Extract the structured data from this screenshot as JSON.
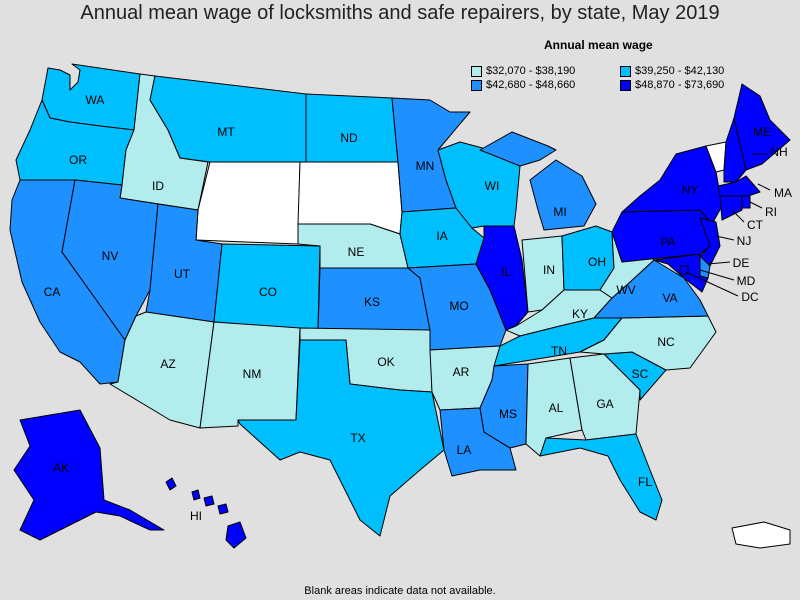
{
  "title": "Annual mean wage of locksmiths and safe repairers, by state, May 2019",
  "legend": {
    "title": "Annual mean wage",
    "items": [
      {
        "label": "$32,070 - $38,190",
        "color": "#b3ecec"
      },
      {
        "label": "$39,250 - $42,130",
        "color": "#00bfff"
      },
      {
        "label": "$42,680 - $48,660",
        "color": "#1e90ff"
      },
      {
        "label": "$48,870 - $73,690",
        "color": "#0000ff"
      }
    ]
  },
  "footnote": "Blank areas indicate data not available.",
  "colors": {
    "tier1": "#b3ecec",
    "tier2": "#00bfff",
    "tier3": "#1e90ff",
    "tier4": "#0000ff",
    "blank": "#ffffff"
  },
  "states": {
    "WA": {
      "label": "WA",
      "tier": 2
    },
    "OR": {
      "label": "OR",
      "tier": 2
    },
    "CA": {
      "label": "CA",
      "tier": 3
    },
    "ID": {
      "label": "ID",
      "tier": 1
    },
    "NV": {
      "label": "NV",
      "tier": 3
    },
    "MT": {
      "label": "MT",
      "tier": 2
    },
    "WY": {
      "label": "",
      "tier": 0
    },
    "UT": {
      "label": "UT",
      "tier": 3
    },
    "AZ": {
      "label": "AZ",
      "tier": 1
    },
    "CO": {
      "label": "CO",
      "tier": 2
    },
    "NM": {
      "label": "NM",
      "tier": 1
    },
    "ND": {
      "label": "ND",
      "tier": 2
    },
    "SD": {
      "label": "",
      "tier": 0
    },
    "NE": {
      "label": "NE",
      "tier": 1
    },
    "KS": {
      "label": "KS",
      "tier": 3
    },
    "OK": {
      "label": "OK",
      "tier": 1
    },
    "TX": {
      "label": "TX",
      "tier": 2
    },
    "MN": {
      "label": "MN",
      "tier": 3
    },
    "IA": {
      "label": "IA",
      "tier": 2
    },
    "MO": {
      "label": "MO",
      "tier": 3
    },
    "AR": {
      "label": "AR",
      "tier": 1
    },
    "LA": {
      "label": "LA",
      "tier": 3
    },
    "WI": {
      "label": "WI",
      "tier": 2
    },
    "IL": {
      "label": "IL",
      "tier": 4
    },
    "MI": {
      "label": "MI",
      "tier": 3
    },
    "IN": {
      "label": "IN",
      "tier": 1
    },
    "OH": {
      "label": "OH",
      "tier": 2
    },
    "KY": {
      "label": "KY",
      "tier": 1
    },
    "TN": {
      "label": "TN",
      "tier": 2
    },
    "MS": {
      "label": "MS",
      "tier": 3
    },
    "AL": {
      "label": "AL",
      "tier": 1
    },
    "GA": {
      "label": "GA",
      "tier": 1
    },
    "FL": {
      "label": "FL",
      "tier": 2
    },
    "SC": {
      "label": "SC",
      "tier": 2
    },
    "NC": {
      "label": "NC",
      "tier": 1
    },
    "VA": {
      "label": "VA",
      "tier": 3
    },
    "WV": {
      "label": "WV",
      "tier": 1
    },
    "PA": {
      "label": "PA",
      "tier": 4
    },
    "NY": {
      "label": "NY",
      "tier": 4
    },
    "VT": {
      "label": "",
      "tier": 0
    },
    "NH": {
      "label": "NH",
      "tier": 4
    },
    "ME": {
      "label": "ME",
      "tier": 4
    },
    "MA": {
      "label": "MA",
      "tier": 4
    },
    "RI": {
      "label": "RI",
      "tier": 4
    },
    "CT": {
      "label": "CT",
      "tier": 4
    },
    "NJ": {
      "label": "NJ",
      "tier": 4
    },
    "DE": {
      "label": "DE",
      "tier": 3
    },
    "MD": {
      "label": "MD",
      "tier": 4
    },
    "DC": {
      "label": "DC",
      "tier": 4
    },
    "AK": {
      "label": "AK",
      "tier": 4
    },
    "HI": {
      "label": "HI",
      "tier": 4
    },
    "PR": {
      "label": "",
      "tier": 0
    }
  }
}
